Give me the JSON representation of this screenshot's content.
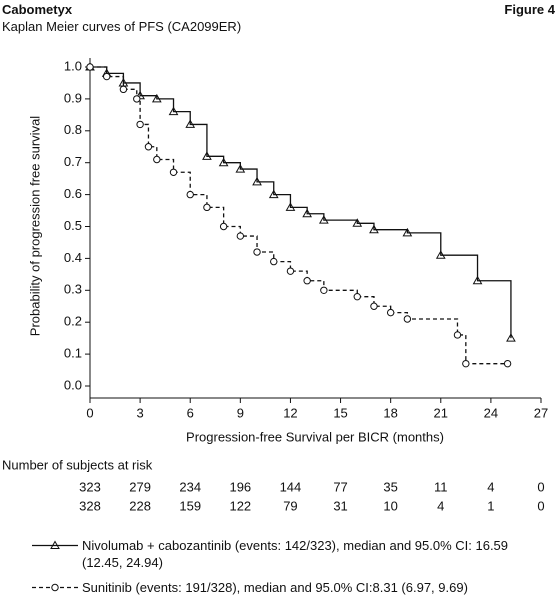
{
  "chart_data": {
    "type": "step",
    "header": "Cabometyx",
    "figure_label": "Figure 4",
    "title": "Kaplan Meier curves of PFS (CA2099ER)",
    "xlabel": "Progression-free Survival per BICR (months)",
    "ylabel": "Probability of progression free survival",
    "xlim": [
      0,
      27
    ],
    "xticks": [
      0,
      3,
      6,
      9,
      12,
      15,
      18,
      21,
      24,
      27
    ],
    "ylim": [
      0,
      1.0
    ],
    "yticks": [
      {
        "value": 0,
        "label": "0.0"
      },
      0.1,
      0.2,
      0.3,
      0.4,
      0.5,
      0.6,
      0.7,
      0.8,
      0.9,
      {
        "value": 1,
        "label": "1.0"
      }
    ],
    "legend": "bottom",
    "series": [
      {
        "name": "Nivolumab + cabozantinib (events: 142/323), median and 95.0% CI: 16.59 (12.45, 24.94)",
        "color": "#111111",
        "dash": "solid",
        "marker": "triangle",
        "x": [
          0,
          1,
          2,
          3,
          4,
          5,
          6,
          7,
          8,
          9,
          10,
          11,
          12,
          13,
          14,
          16,
          17,
          19,
          21,
          23.2,
          25.2
        ],
        "values": [
          1.0,
          0.98,
          0.95,
          0.91,
          0.9,
          0.86,
          0.82,
          0.72,
          0.7,
          0.68,
          0.64,
          0.6,
          0.56,
          0.54,
          0.52,
          0.51,
          0.49,
          0.48,
          0.41,
          0.33,
          0.15
        ]
      },
      {
        "name": "Sunitinib (events: 191/328), median and 95.0% CI:8.31 (6.97, 9.69)",
        "color": "#111111",
        "dash": "dashed",
        "marker": "circle",
        "x": [
          0,
          1,
          2,
          2.8,
          3,
          3.5,
          4,
          5,
          6,
          7,
          8,
          9,
          10,
          11,
          12,
          13,
          14,
          16,
          17,
          18,
          19,
          22,
          22.5,
          25
        ],
        "values": [
          1.0,
          0.97,
          0.93,
          0.9,
          0.82,
          0.75,
          0.71,
          0.67,
          0.6,
          0.56,
          0.5,
          0.47,
          0.42,
          0.39,
          0.36,
          0.33,
          0.3,
          0.28,
          0.25,
          0.23,
          0.21,
          0.16,
          0.07,
          0.07
        ]
      }
    ],
    "at_risk": {
      "title": "Number of subjects at risk",
      "rows": [
        [
          323,
          279,
          234,
          196,
          144,
          77,
          35,
          11,
          4,
          0
        ],
        [
          328,
          228,
          159,
          122,
          79,
          31,
          10,
          4,
          1,
          0
        ]
      ]
    }
  }
}
